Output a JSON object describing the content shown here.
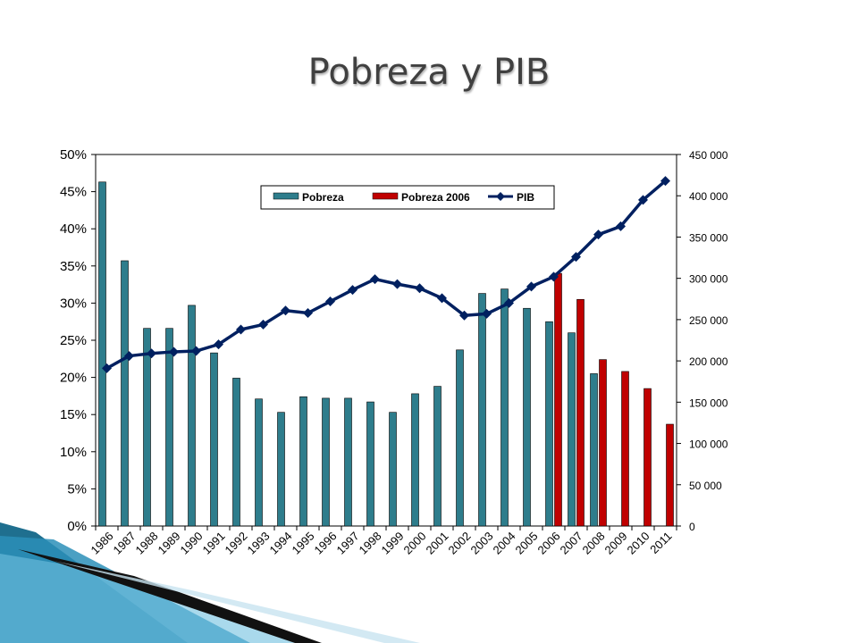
{
  "slide": {
    "title": "Pobreza y PIB"
  },
  "chart_data": {
    "type": "bar",
    "title": "",
    "xlabel": "",
    "ylabel": "",
    "categories": [
      "1986",
      "1987",
      "1988",
      "1989",
      "1990",
      "1991",
      "1992",
      "1993",
      "1994",
      "1995",
      "1996",
      "1997",
      "1998",
      "1999",
      "2000",
      "2001",
      "2002",
      "2003",
      "2004",
      "2005",
      "2006",
      "2007",
      "2008",
      "2009",
      "2010",
      "2011"
    ],
    "ylim": [
      0,
      0.5
    ],
    "y_ticks": [
      "0%",
      "5%",
      "10%",
      "15%",
      "20%",
      "25%",
      "30%",
      "35%",
      "40%",
      "45%",
      "50%"
    ],
    "y2lim": [
      0,
      450000
    ],
    "y2_ticks": [
      "0",
      "50 000",
      "100 000",
      "150 000",
      "200 000",
      "250 000",
      "300 000",
      "350 000",
      "400 000",
      "450 000"
    ],
    "legend_position": "top-center",
    "series": [
      {
        "name": "Pobreza",
        "type": "bar",
        "axis": "left",
        "color": "#2E7D8C",
        "values": [
          0.463,
          0.357,
          0.266,
          0.266,
          0.297,
          0.233,
          0.199,
          0.171,
          0.153,
          0.174,
          0.172,
          0.172,
          0.167,
          0.153,
          0.178,
          0.188,
          0.237,
          0.313,
          0.319,
          0.293,
          0.275,
          0.26,
          0.205,
          null,
          null,
          null
        ]
      },
      {
        "name": "Pobreza 2006",
        "type": "bar",
        "axis": "left",
        "color": "#C00000",
        "values": [
          null,
          null,
          null,
          null,
          null,
          null,
          null,
          null,
          null,
          null,
          null,
          null,
          null,
          null,
          null,
          null,
          null,
          null,
          null,
          null,
          0.34,
          0.305,
          0.224,
          0.208,
          0.185,
          0.137
        ]
      },
      {
        "name": "PIB",
        "type": "line",
        "axis": "right",
        "color": "#002060",
        "values": [
          191000,
          206000,
          209000,
          211000,
          212000,
          220000,
          238000,
          244000,
          261000,
          258000,
          272000,
          286000,
          299000,
          293000,
          288000,
          276000,
          255000,
          257000,
          270000,
          290000,
          302000,
          326000,
          353000,
          363000,
          395000,
          418000
        ]
      }
    ]
  }
}
